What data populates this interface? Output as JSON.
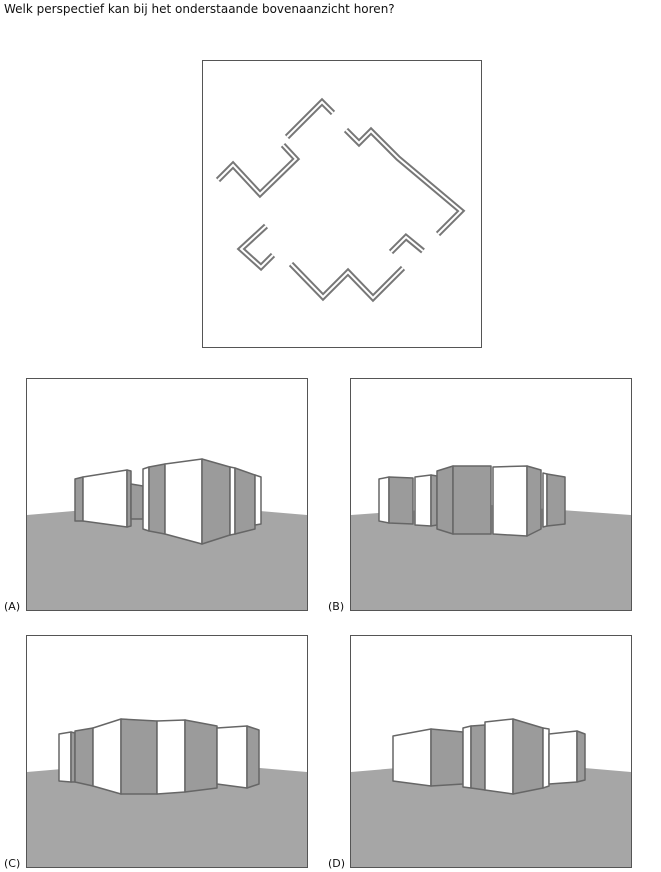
{
  "question": "Welk perspectief kan bij het onderstaande bovenaanzicht horen?",
  "options": [
    {
      "id": "a",
      "label": "(A)"
    },
    {
      "id": "b",
      "label": "(B)"
    },
    {
      "id": "c",
      "label": "(C)"
    },
    {
      "id": "d",
      "label": "(D)"
    }
  ],
  "colors": {
    "ground": "#a6a6a6",
    "wall_light": "#ffffff",
    "wall_dark": "#9b9b9b",
    "outline": "#666666"
  }
}
